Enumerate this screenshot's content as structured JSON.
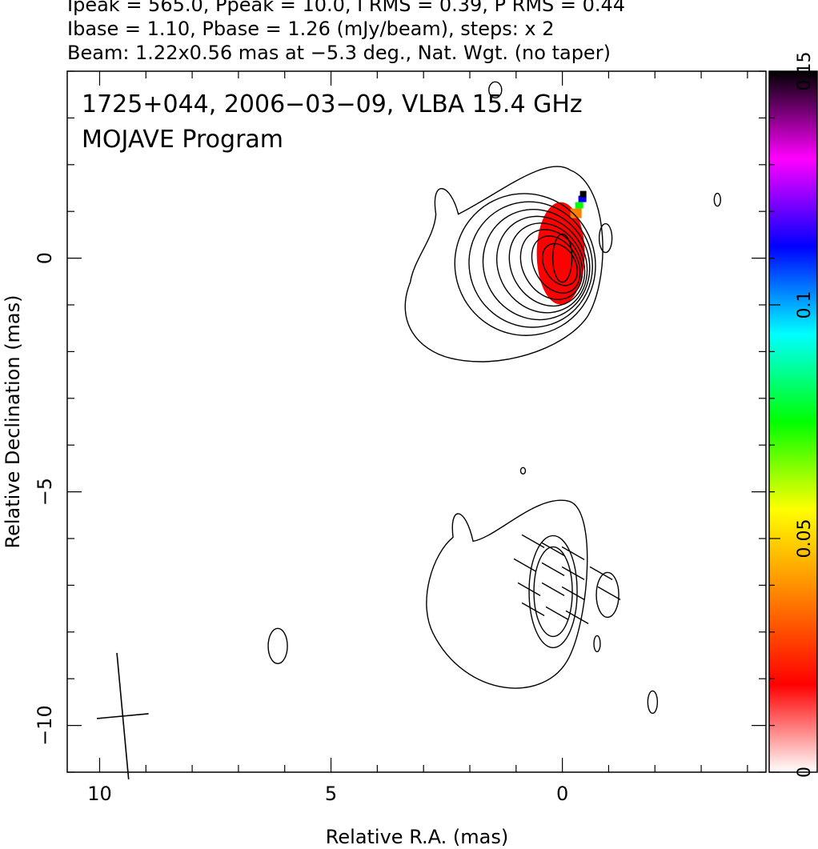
{
  "header": {
    "line1": "Ipeak = 565.0, Ppeak = 10.0, I RMS = 0.39, P RMS = 0.44",
    "line2": "Ibase = 1.10, Pbase = 1.26 (mJy/beam), steps: x 2",
    "line3": "Beam: 1.22x0.56 mas at −5.3 deg., Nat. Wgt. (no taper)"
  },
  "chart_data": {
    "type": "heatmap",
    "title": "1725+044, 2006−03−09, VLBA 15.4 GHz",
    "subtitle": "MOJAVE Program",
    "xlabel": "Relative R.A. (mas)",
    "ylabel": "Relative Declination (mas)",
    "xlim": [
      10.7,
      -4.4
    ],
    "ylim": [
      -11.0,
      4.0
    ],
    "x_ticks": [
      10,
      5,
      0
    ],
    "y_ticks": [
      0,
      -5,
      -10
    ],
    "colorbar": {
      "label_ticks": [
        {
          "value": 0,
          "label": "0"
        },
        {
          "value": 0.05,
          "label": "0.05"
        },
        {
          "value": 0.1,
          "label": "0.1"
        },
        {
          "value": 0.15,
          "label": "0.15"
        }
      ],
      "range": [
        0,
        0.15
      ],
      "colors": [
        "#ffffff",
        "#ff0000",
        "#ff8000",
        "#ffff00",
        "#00ff00",
        "#00ffff",
        "#0000ff",
        "#ff00ff",
        "#000000"
      ]
    },
    "core": {
      "x": 0.0,
      "y": 0.0,
      "peak_mJy_per_beam": 565.0
    },
    "jet_component": {
      "x": 0.2,
      "y": -7.0
    },
    "beam": {
      "major_mas": 1.22,
      "minor_mas": 0.56,
      "pa_deg": -5.3,
      "x": 9.5,
      "y": -9.8
    },
    "polarization_fraction_peak": 0.02
  }
}
